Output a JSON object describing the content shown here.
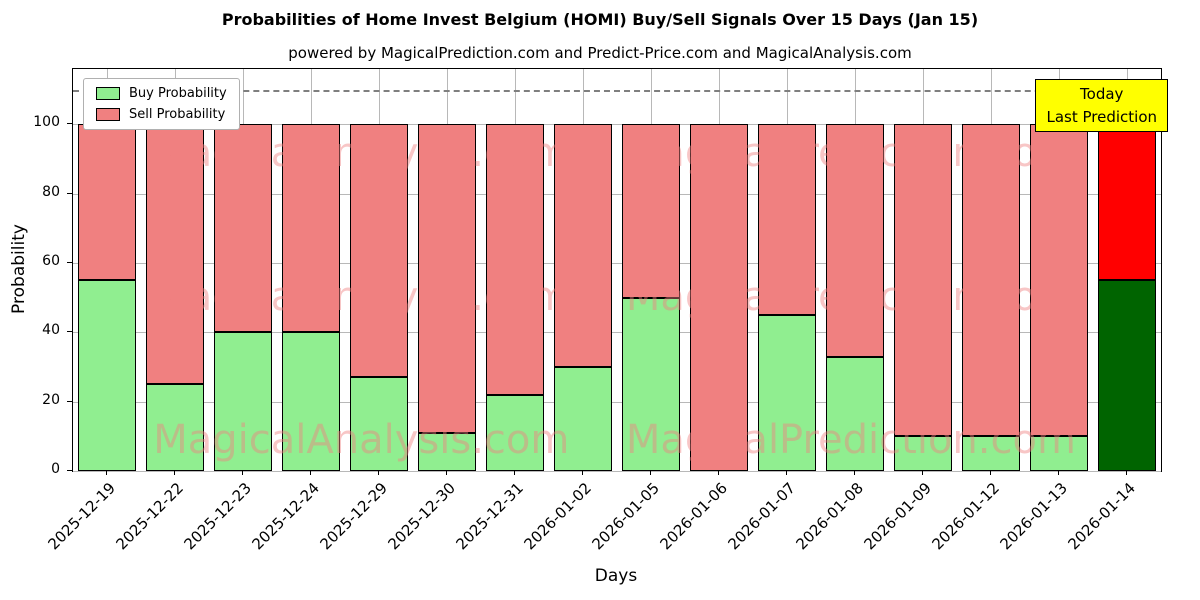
{
  "chart_data": {
    "type": "bar",
    "stacked": true,
    "title": "Probabilities of Home Invest Belgium (HOMI) Buy/Sell Signals Over 15 Days (Jan 15)",
    "subtitle": "powered by MagicalPrediction.com and Predict-Price.com and MagicalAnalysis.com",
    "xlabel": "Days",
    "ylabel": "Probability",
    "ylim": [
      0,
      116
    ],
    "yticks": [
      0,
      20,
      40,
      60,
      80,
      100
    ],
    "dashed_line_y": 110,
    "grid": true,
    "legend_position": "upper-left",
    "categories": [
      "2025-12-19",
      "2025-12-22",
      "2025-12-23",
      "2025-12-24",
      "2025-12-29",
      "2025-12-30",
      "2025-12-31",
      "2026-01-02",
      "2026-01-05",
      "2026-01-06",
      "2026-01-07",
      "2026-01-08",
      "2026-01-09",
      "2026-01-12",
      "2026-01-13",
      "2026-01-14"
    ],
    "series": [
      {
        "name": "Buy Probability",
        "color": "#90EE90",
        "values": [
          55,
          25,
          40,
          40,
          27,
          11,
          22,
          30,
          50,
          0,
          45,
          33,
          10,
          10,
          10,
          55
        ]
      },
      {
        "name": "Sell Probability",
        "color": "#F08080",
        "values": [
          45,
          75,
          60,
          60,
          73,
          89,
          78,
          70,
          50,
          100,
          55,
          67,
          90,
          90,
          90,
          45
        ]
      }
    ],
    "last_bar": {
      "buy_color": "#006400",
      "sell_color": "#FF0000"
    },
    "annotation": {
      "line1": "Today",
      "line2": "Last Prediction",
      "bg": "#FFFF00"
    },
    "watermarks": [
      "MagicalAnalysis.com",
      "MagicalPrediction.com"
    ]
  }
}
